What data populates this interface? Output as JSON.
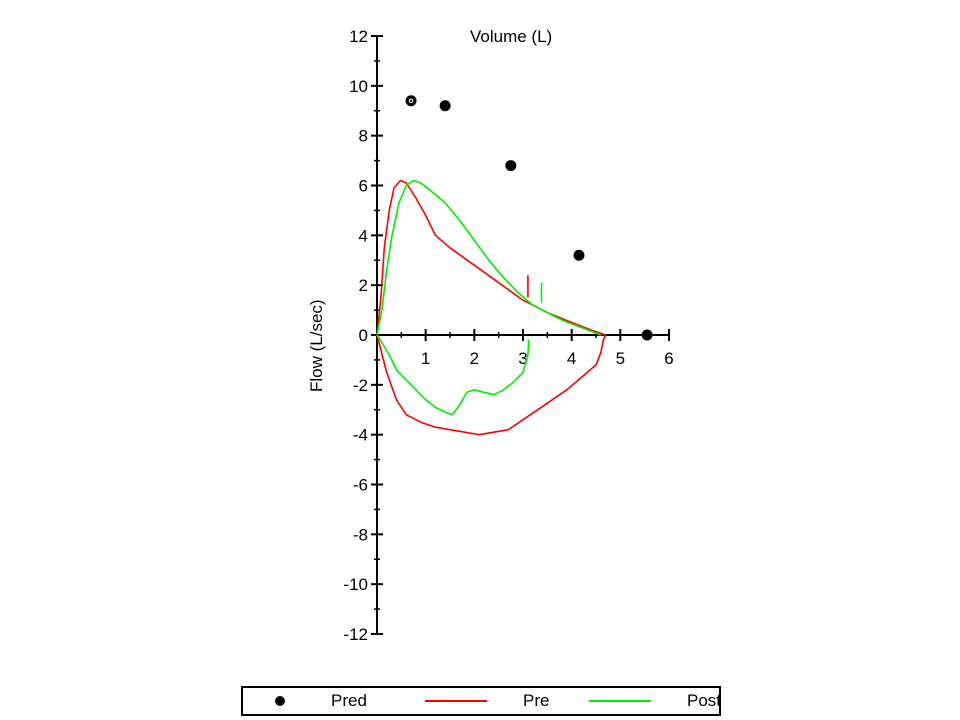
{
  "chart_data": {
    "type": "line",
    "title": "",
    "xlabel": "Volume (L)",
    "ylabel": "Flow (L/sec)",
    "xlim": [
      0,
      6
    ],
    "ylim": [
      -12,
      12
    ],
    "x_ticks": [
      "1",
      "2",
      "3",
      "4",
      "5",
      "6"
    ],
    "y_ticks": [
      "12",
      "10",
      "8",
      "6",
      "4",
      "2",
      "0",
      "-2",
      "-4",
      "-6",
      "-8",
      "-10",
      "-12"
    ],
    "legend_position": "bottom",
    "series": [
      {
        "name": "Pred",
        "kind": "points",
        "color": "#000000",
        "points": [
          [
            0.7,
            9.4
          ],
          [
            1.4,
            9.2
          ],
          [
            2.75,
            6.8
          ],
          [
            4.15,
            3.2
          ],
          [
            5.55,
            0.0
          ]
        ]
      },
      {
        "name": "Pre",
        "kind": "line",
        "color": "#ff0000",
        "expiratory": [
          [
            0.0,
            0.0
          ],
          [
            0.08,
            1.5
          ],
          [
            0.15,
            3.5
          ],
          [
            0.25,
            5.0
          ],
          [
            0.35,
            5.9
          ],
          [
            0.48,
            6.2
          ],
          [
            0.6,
            6.1
          ],
          [
            0.8,
            5.5
          ],
          [
            1.0,
            4.8
          ],
          [
            1.2,
            4.0
          ],
          [
            1.5,
            3.5
          ],
          [
            2.0,
            2.8
          ],
          [
            2.5,
            2.1
          ],
          [
            3.0,
            1.4
          ],
          [
            3.5,
            0.9
          ],
          [
            4.0,
            0.5
          ],
          [
            4.4,
            0.2
          ],
          [
            4.7,
            0.0
          ]
        ],
        "inspiratory": [
          [
            0.0,
            0.0
          ],
          [
            0.2,
            -1.5
          ],
          [
            0.4,
            -2.6
          ],
          [
            0.6,
            -3.2
          ],
          [
            0.9,
            -3.5
          ],
          [
            1.2,
            -3.7
          ],
          [
            1.5,
            -3.8
          ],
          [
            1.8,
            -3.9
          ],
          [
            2.1,
            -4.0
          ],
          [
            2.4,
            -3.9
          ],
          [
            2.7,
            -3.8
          ],
          [
            3.0,
            -3.4
          ],
          [
            3.3,
            -3.0
          ],
          [
            3.6,
            -2.6
          ],
          [
            3.9,
            -2.2
          ],
          [
            4.2,
            -1.7
          ],
          [
            4.5,
            -1.2
          ],
          [
            4.6,
            -0.7
          ],
          [
            4.65,
            -0.2
          ],
          [
            4.7,
            0.0
          ]
        ]
      },
      {
        "name": "Post",
        "kind": "line",
        "color": "#00ee00",
        "expiratory": [
          [
            0.0,
            0.0
          ],
          [
            0.1,
            1.0
          ],
          [
            0.2,
            2.6
          ],
          [
            0.3,
            3.9
          ],
          [
            0.45,
            5.3
          ],
          [
            0.6,
            6.0
          ],
          [
            0.75,
            6.2
          ],
          [
            0.9,
            6.1
          ],
          [
            1.1,
            5.8
          ],
          [
            1.4,
            5.3
          ],
          [
            1.7,
            4.6
          ],
          [
            2.0,
            3.8
          ],
          [
            2.3,
            3.0
          ],
          [
            2.6,
            2.3
          ],
          [
            2.9,
            1.7
          ],
          [
            3.2,
            1.2
          ],
          [
            3.5,
            0.9
          ],
          [
            3.8,
            0.6
          ],
          [
            4.2,
            0.3
          ],
          [
            4.6,
            0.0
          ]
        ],
        "inspiratory": [
          [
            0.0,
            0.0
          ],
          [
            0.1,
            -0.3
          ],
          [
            0.25,
            -0.8
          ],
          [
            0.4,
            -1.4
          ],
          [
            0.6,
            -1.8
          ],
          [
            0.8,
            -2.2
          ],
          [
            1.0,
            -2.6
          ],
          [
            1.2,
            -2.9
          ],
          [
            1.4,
            -3.1
          ],
          [
            1.55,
            -3.2
          ],
          [
            1.7,
            -2.8
          ],
          [
            1.85,
            -2.3
          ],
          [
            2.0,
            -2.2
          ],
          [
            2.2,
            -2.3
          ],
          [
            2.4,
            -2.4
          ],
          [
            2.6,
            -2.2
          ],
          [
            2.8,
            -1.9
          ],
          [
            3.0,
            -1.5
          ],
          [
            3.1,
            -0.8
          ],
          [
            3.12,
            -0.2
          ]
        ],
        "post_marks": [
          [
            3.38,
            1.3
          ],
          [
            3.38,
            2.1
          ]
        ]
      }
    ],
    "pre_marks": [
      [
        3.1,
        1.5
      ],
      [
        3.1,
        2.4
      ]
    ]
  },
  "legend": {
    "pred_label": "Pred",
    "pre_label": "Pre",
    "post_label": "Post"
  }
}
